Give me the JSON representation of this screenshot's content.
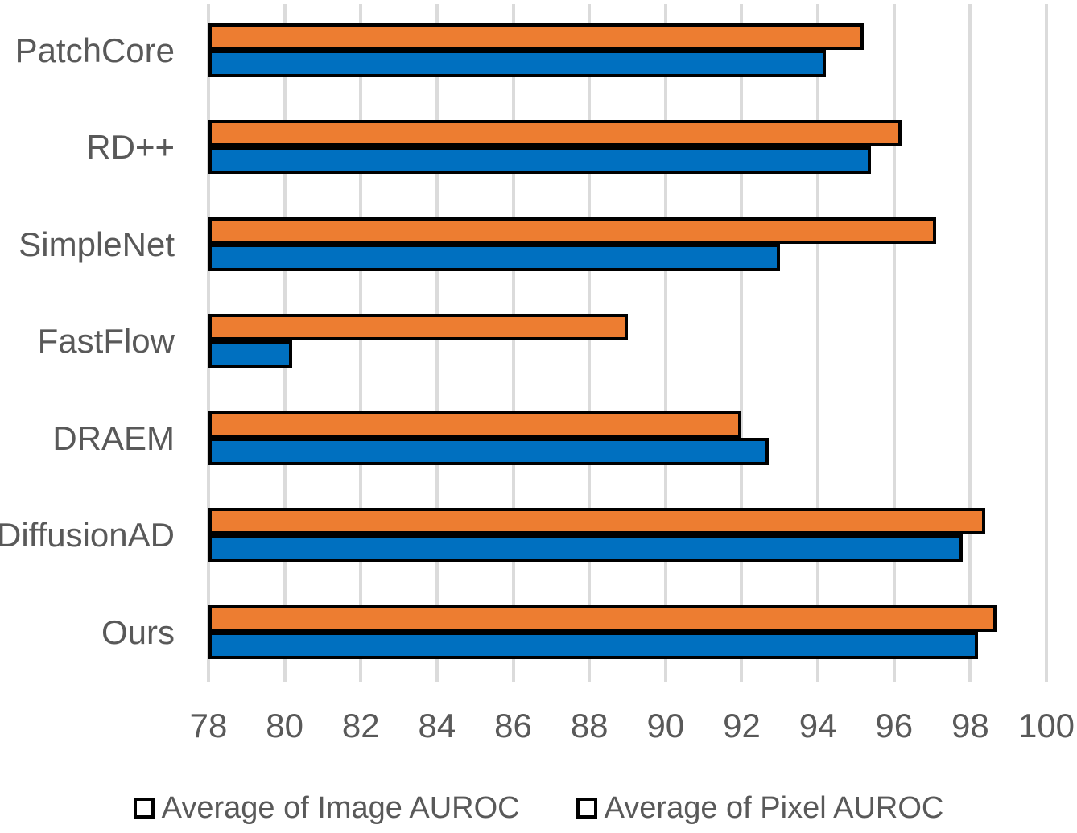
{
  "chart_data": {
    "type": "bar",
    "orientation": "horizontal",
    "title": "",
    "xlabel": "",
    "ylabel": "",
    "categories": [
      "PatchCore",
      "RD++",
      "SimpleNet",
      "FastFlow",
      "DRAEM",
      "DiffusionAD",
      "Ours"
    ],
    "series": [
      {
        "name": "Average of Image AUROC",
        "color": "#ED7D31",
        "values": [
          95.2,
          96.2,
          97.1,
          89.0,
          92.0,
          98.4,
          98.7
        ]
      },
      {
        "name": "Average of Pixel AUROC",
        "color": "#0070C0",
        "values": [
          94.2,
          95.4,
          93.0,
          80.2,
          92.7,
          97.8,
          98.2
        ]
      }
    ],
    "xlim": [
      78,
      100
    ],
    "x_ticks": [
      78,
      80,
      82,
      84,
      86,
      88,
      90,
      92,
      94,
      96,
      98,
      100
    ],
    "grid": true,
    "gridline_color": "#DBDBDB",
    "bar_border_color": "#000000",
    "text_color": "#595959",
    "legend_position": "bottom"
  }
}
